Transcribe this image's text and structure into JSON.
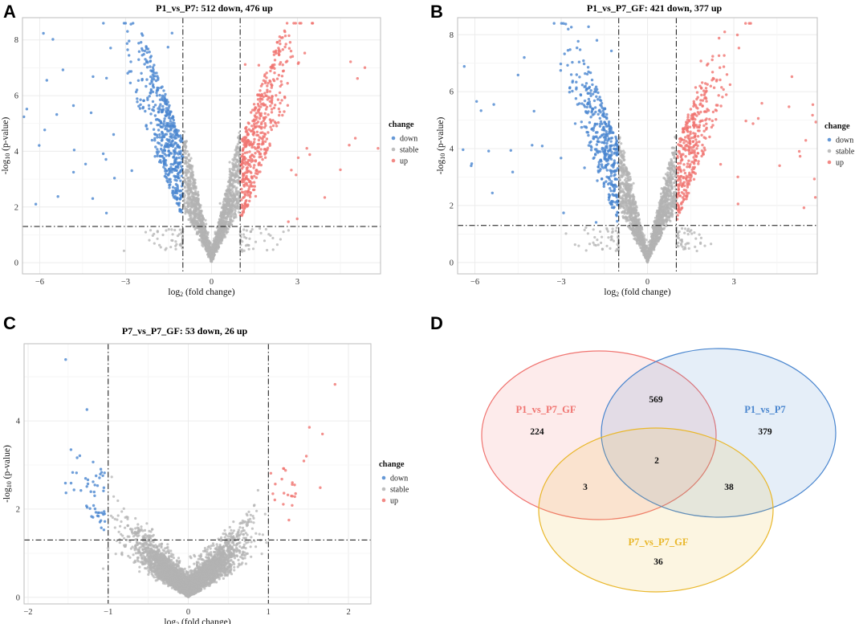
{
  "colors": {
    "down": "#4a86cf",
    "stable": "#b3b3b3",
    "up": "#f07470",
    "grid": "#ececec",
    "frame": "#bdbdbd",
    "threshold": "#111111",
    "venn_p1p7gf": "#f07470",
    "venn_p1p7": "#4a86cf",
    "venn_p7p7gf": "#e9b72a"
  },
  "chart_data": [
    {
      "panel": "A",
      "type": "scatter",
      "title": "P1_vs_P7: 512 down, 476 up",
      "xlabel_main": "log",
      "xlabel_sub": "2",
      "xlabel_rest": " (fold change)",
      "ylabel_pre": "-log",
      "ylabel_sub": "10",
      "ylabel_rest": " (p-value)",
      "xlim": [
        -6.6,
        5.9
      ],
      "ylim": [
        -0.4,
        8.8
      ],
      "xticks": [
        -6,
        -3,
        0,
        3
      ],
      "xtick_labels": [
        "−6",
        "−3",
        "0",
        "3"
      ],
      "yticks": [
        0,
        2,
        4,
        6,
        8
      ],
      "ytick_labels": [
        "0",
        "2",
        "4",
        "6",
        "8"
      ],
      "fc_threshold": 1,
      "p_threshold": 1.3,
      "down_count": 512,
      "up_count": 476,
      "stable_count": 2400,
      "xspread": 3.6,
      "ymax_scale": 8.0,
      "seed": 11,
      "legend_title": "change",
      "legend_items": [
        "down",
        "stable",
        "up"
      ]
    },
    {
      "panel": "B",
      "type": "scatter",
      "title": "P1_vs_P7_GF: 421 down, 377 up",
      "xlabel_main": "log",
      "xlabel_sub": "2",
      "xlabel_rest": " (fold change)",
      "ylabel_pre": "-log",
      "ylabel_sub": "10",
      "ylabel_rest": " (p-value)",
      "xlim": [
        -6.6,
        5.9
      ],
      "ylim": [
        -0.4,
        8.6
      ],
      "xticks": [
        -6,
        -3,
        0,
        3
      ],
      "xtick_labels": [
        "−6",
        "−3",
        "0",
        "3"
      ],
      "yticks": [
        0,
        2,
        4,
        6,
        8
      ],
      "ytick_labels": [
        "0",
        "2",
        "4",
        "6",
        "8"
      ],
      "fc_threshold": 1,
      "p_threshold": 1.3,
      "down_count": 421,
      "up_count": 377,
      "stable_count": 2400,
      "xspread": 3.4,
      "ymax_scale": 7.5,
      "seed": 23,
      "legend_title": "change",
      "legend_items": [
        "down",
        "stable",
        "up"
      ]
    },
    {
      "panel": "C",
      "type": "scatter",
      "title": "P7_vs_P7_GF: 53 down, 26 up",
      "xlabel_main": "log",
      "xlabel_sub": "2",
      "xlabel_rest": " (fold change)",
      "ylabel_pre": "-log",
      "ylabel_sub": "10",
      "ylabel_rest": " (p-value)",
      "xlim": [
        -2.05,
        2.28
      ],
      "ylim": [
        -0.15,
        5.75
      ],
      "xticks": [
        -2,
        -1,
        0,
        1,
        2
      ],
      "xtick_labels": [
        "−2",
        "−1",
        "0",
        "1",
        "2"
      ],
      "yticks": [
        0,
        2,
        4
      ],
      "ytick_labels": [
        "0",
        "2",
        "4"
      ],
      "fc_threshold": 1,
      "p_threshold": 1.3,
      "down_count": 53,
      "up_count": 26,
      "stable_count": 4200,
      "xspread": 1.1,
      "ymax_scale": 4.0,
      "seed": 37,
      "legend_title": "change",
      "legend_items": [
        "down",
        "stable",
        "up"
      ]
    },
    {
      "panel": "D",
      "type": "venn",
      "sets": [
        {
          "name": "P1_vs_P7_GF",
          "key": "venn_p1p7gf"
        },
        {
          "name": "P1_vs_P7",
          "key": "venn_p1p7"
        },
        {
          "name": "P7_vs_P7_GF",
          "key": "venn_p7p7gf"
        }
      ],
      "regions": {
        "only_P1_vs_P7_GF": 224,
        "only_P1_vs_P7": 379,
        "only_P7_vs_P7_GF": 36,
        "P1_vs_P7_GF_and_P1_vs_P7": 569,
        "P1_vs_P7_GF_and_P7_vs_P7_GF": 3,
        "P1_vs_P7_and_P7_vs_P7_GF": 38,
        "all_three": 2
      }
    }
  ]
}
